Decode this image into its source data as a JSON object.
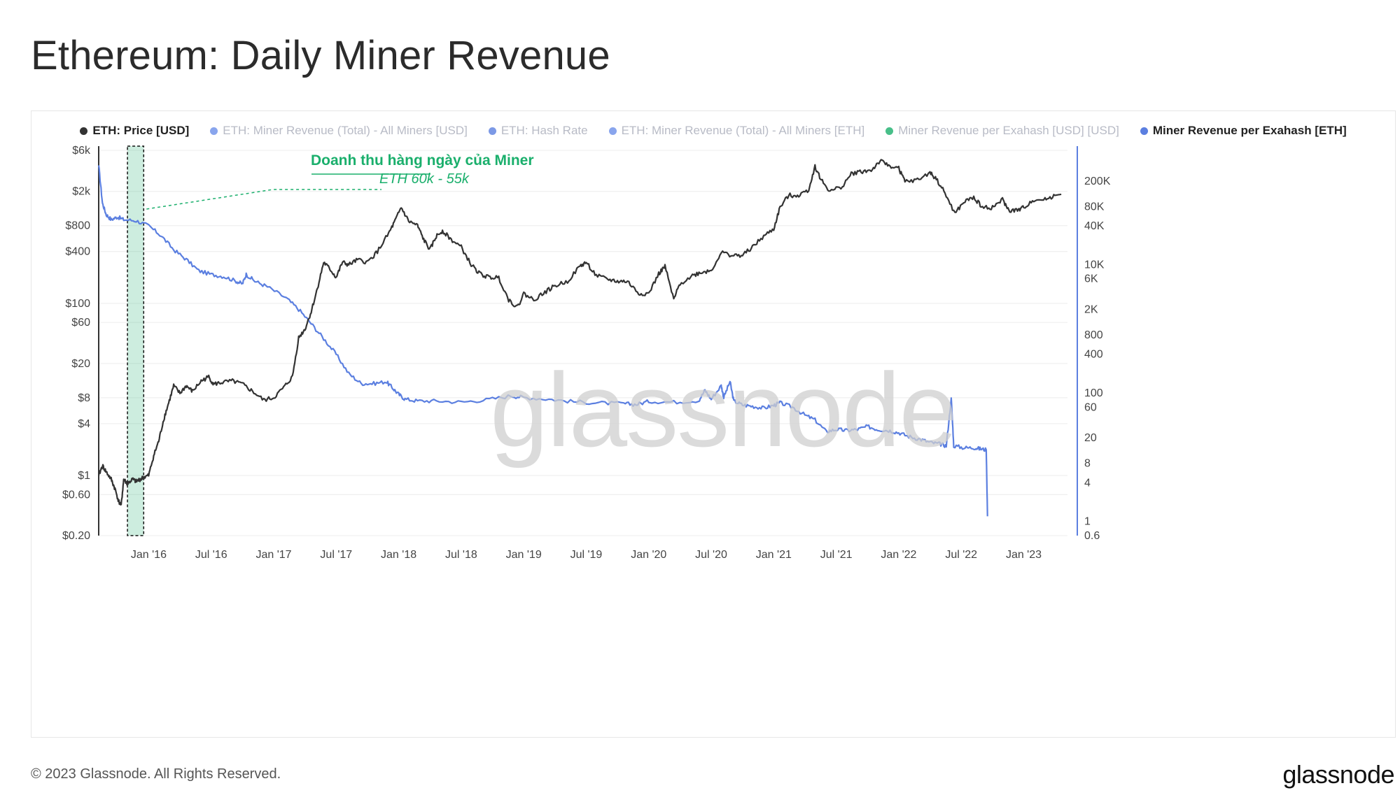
{
  "title": "Ethereum: Daily Miner Revenue",
  "footer": "© 2023 Glassnode. All Rights Reserved.",
  "brand": "glassnode",
  "watermark": "glassnode",
  "annotation": {
    "title": "Doanh thu hàng ngày của Miner",
    "subtitle": "ETH 60k - 55k",
    "color": "#1aaf6c"
  },
  "legend": [
    {
      "label": "ETH: Price [USD]",
      "color": "#333333",
      "state": "active"
    },
    {
      "label": "ETH: Miner Revenue (Total) - All Miners [USD]",
      "color": "#6b8ee8",
      "state": "faded"
    },
    {
      "label": "ETH: Hash Rate",
      "color": "#5b7fe0",
      "state": "faded"
    },
    {
      "label": "ETH: Miner Revenue (Total) - All Miners [ETH]",
      "color": "#6b8ee8",
      "state": "faded"
    },
    {
      "label": "Miner Revenue per Exahash [USD] [USD]",
      "color": "#1aaf6c",
      "state": "faded"
    },
    {
      "label": "Miner Revenue per Exahash [ETH]",
      "color": "#5b7fe0",
      "state": "active"
    }
  ],
  "chart_data": {
    "type": "line",
    "title": "Ethereum: Daily Miner Revenue",
    "x_ticks": [
      "Jan '16",
      "Jul '16",
      "Jan '17",
      "Jul '17",
      "Jan '18",
      "Jul '18",
      "Jan '19",
      "Jul '19",
      "Jan '20",
      "Jul '20",
      "Jan '21",
      "Jul '21",
      "Jan '22",
      "Jul '22",
      "Jan '23"
    ],
    "x_range": [
      2015.6,
      2023.35
    ],
    "y_left": {
      "scale": "log",
      "range": [
        0.2,
        6000
      ],
      "ticks": [
        {
          "v": 6000,
          "label": "$6k"
        },
        {
          "v": 2000,
          "label": "$2k"
        },
        {
          "v": 800,
          "label": "$800"
        },
        {
          "v": 400,
          "label": "$400"
        },
        {
          "v": 100,
          "label": "$100"
        },
        {
          "v": 60,
          "label": "$60"
        },
        {
          "v": 20,
          "label": "$20"
        },
        {
          "v": 8,
          "label": "$8"
        },
        {
          "v": 4,
          "label": "$4"
        },
        {
          "v": 1,
          "label": "$1"
        },
        {
          "v": 0.6,
          "label": "$0.60"
        },
        {
          "v": 0.2,
          "label": "$0.20"
        }
      ]
    },
    "y_right": {
      "scale": "log",
      "range": [
        0.6,
        600000
      ],
      "ticks": [
        {
          "v": 200000,
          "label": "200K"
        },
        {
          "v": 80000,
          "label": "80K"
        },
        {
          "v": 40000,
          "label": "40K"
        },
        {
          "v": 10000,
          "label": "10K"
        },
        {
          "v": 6000,
          "label": "6K"
        },
        {
          "v": 2000,
          "label": "2K"
        },
        {
          "v": 800,
          "label": "800"
        },
        {
          "v": 400,
          "label": "400"
        },
        {
          "v": 100,
          "label": "100"
        },
        {
          "v": 60,
          "label": "60"
        },
        {
          "v": 20,
          "label": "20"
        },
        {
          "v": 8,
          "label": "8"
        },
        {
          "v": 4,
          "label": "4"
        },
        {
          "v": 1,
          "label": "1"
        },
        {
          "v": 0.6,
          "label": "0.6"
        }
      ]
    },
    "highlight": {
      "x_start": 2015.83,
      "x_end": 2015.96,
      "color": "#1aaf6c"
    },
    "series": [
      {
        "name": "ETH: Price [USD]",
        "axis": "left",
        "color": "#333333",
        "points": [
          [
            2015.6,
            1.0
          ],
          [
            2015.63,
            1.3
          ],
          [
            2015.66,
            1.1
          ],
          [
            2015.7,
            0.9
          ],
          [
            2015.73,
            0.7
          ],
          [
            2015.76,
            0.5
          ],
          [
            2015.78,
            0.45
          ],
          [
            2015.8,
            0.9
          ],
          [
            2015.83,
            0.8
          ],
          [
            2015.87,
            0.9
          ],
          [
            2015.9,
            0.85
          ],
          [
            2015.93,
            0.9
          ],
          [
            2015.96,
            0.95
          ],
          [
            2016.0,
            1.0
          ],
          [
            2016.04,
            1.7
          ],
          [
            2016.08,
            2.5
          ],
          [
            2016.12,
            4.5
          ],
          [
            2016.16,
            7.0
          ],
          [
            2016.2,
            11.0
          ],
          [
            2016.25,
            9.0
          ],
          [
            2016.3,
            11.0
          ],
          [
            2016.35,
            9.5
          ],
          [
            2016.42,
            12.5
          ],
          [
            2016.48,
            14.0
          ],
          [
            2016.52,
            11.5
          ],
          [
            2016.58,
            12.0
          ],
          [
            2016.67,
            12.5
          ],
          [
            2016.75,
            11.5
          ],
          [
            2016.83,
            9.5
          ],
          [
            2016.92,
            7.5
          ],
          [
            2017.0,
            8.0
          ],
          [
            2017.08,
            10.5
          ],
          [
            2017.15,
            14.0
          ],
          [
            2017.2,
            40.0
          ],
          [
            2017.25,
            50.0
          ],
          [
            2017.3,
            80.0
          ],
          [
            2017.35,
            150.0
          ],
          [
            2017.4,
            300.0
          ],
          [
            2017.45,
            250.0
          ],
          [
            2017.5,
            200.0
          ],
          [
            2017.55,
            300.0
          ],
          [
            2017.6,
            280.0
          ],
          [
            2017.67,
            320.0
          ],
          [
            2017.75,
            300.0
          ],
          [
            2017.83,
            400.0
          ],
          [
            2017.92,
            650.0
          ],
          [
            2017.97,
            900.0
          ],
          [
            2018.02,
            1300.0
          ],
          [
            2018.08,
            900.0
          ],
          [
            2018.15,
            800.0
          ],
          [
            2018.2,
            550.0
          ],
          [
            2018.25,
            420.0
          ],
          [
            2018.3,
            600.0
          ],
          [
            2018.35,
            700.0
          ],
          [
            2018.42,
            550.0
          ],
          [
            2018.5,
            450.0
          ],
          [
            2018.58,
            280.0
          ],
          [
            2018.65,
            220.0
          ],
          [
            2018.72,
            200.0
          ],
          [
            2018.8,
            200.0
          ],
          [
            2018.88,
            110.0
          ],
          [
            2018.95,
            90.0
          ],
          [
            2019.0,
            130.0
          ],
          [
            2019.08,
            110.0
          ],
          [
            2019.17,
            135.0
          ],
          [
            2019.25,
            160.0
          ],
          [
            2019.35,
            180.0
          ],
          [
            2019.45,
            270.0
          ],
          [
            2019.5,
            300.0
          ],
          [
            2019.58,
            210.0
          ],
          [
            2019.67,
            190.0
          ],
          [
            2019.75,
            180.0
          ],
          [
            2019.83,
            180.0
          ],
          [
            2019.92,
            130.0
          ],
          [
            2020.0,
            130.0
          ],
          [
            2020.08,
            220.0
          ],
          [
            2020.13,
            270.0
          ],
          [
            2020.2,
            110.0
          ],
          [
            2020.25,
            170.0
          ],
          [
            2020.35,
            210.0
          ],
          [
            2020.42,
            230.0
          ],
          [
            2020.5,
            240.0
          ],
          [
            2020.58,
            390.0
          ],
          [
            2020.67,
            360.0
          ],
          [
            2020.75,
            360.0
          ],
          [
            2020.83,
            450.0
          ],
          [
            2020.92,
            600.0
          ],
          [
            2021.0,
            730.0
          ],
          [
            2021.05,
            1300.0
          ],
          [
            2021.12,
            1800.0
          ],
          [
            2021.2,
            1800.0
          ],
          [
            2021.28,
            2100.0
          ],
          [
            2021.33,
            3900.0
          ],
          [
            2021.38,
            2700.0
          ],
          [
            2021.45,
            2000.0
          ],
          [
            2021.55,
            2300.0
          ],
          [
            2021.62,
            3200.0
          ],
          [
            2021.7,
            3400.0
          ],
          [
            2021.78,
            3500.0
          ],
          [
            2021.85,
            4500.0
          ],
          [
            2021.92,
            4000.0
          ],
          [
            2022.0,
            3700.0
          ],
          [
            2022.05,
            2600.0
          ],
          [
            2022.15,
            2700.0
          ],
          [
            2022.25,
            3300.0
          ],
          [
            2022.3,
            2800.0
          ],
          [
            2022.37,
            1900.0
          ],
          [
            2022.45,
            1100.0
          ],
          [
            2022.52,
            1500.0
          ],
          [
            2022.6,
            1700.0
          ],
          [
            2022.67,
            1300.0
          ],
          [
            2022.75,
            1300.0
          ],
          [
            2022.83,
            1600.0
          ],
          [
            2022.88,
            1200.0
          ],
          [
            2022.95,
            1200.0
          ],
          [
            2023.0,
            1300.0
          ],
          [
            2023.08,
            1600.0
          ],
          [
            2023.17,
            1600.0
          ],
          [
            2023.25,
            1800.0
          ],
          [
            2023.3,
            1850.0
          ]
        ]
      },
      {
        "name": "Miner Revenue per Exahash [ETH]",
        "axis": "right",
        "color": "#5b7fe0",
        "points": [
          [
            2015.6,
            350000
          ],
          [
            2015.63,
            90000
          ],
          [
            2015.66,
            60000
          ],
          [
            2015.7,
            50000
          ],
          [
            2015.75,
            55000
          ],
          [
            2015.8,
            50000
          ],
          [
            2015.9,
            48000
          ],
          [
            2016.0,
            40000
          ],
          [
            2016.1,
            28000
          ],
          [
            2016.2,
            17000
          ],
          [
            2016.3,
            12000
          ],
          [
            2016.4,
            8000
          ],
          [
            2016.5,
            7000
          ],
          [
            2016.6,
            6500
          ],
          [
            2016.7,
            5500
          ],
          [
            2016.75,
            5000
          ],
          [
            2016.78,
            7000
          ],
          [
            2016.85,
            5500
          ],
          [
            2016.95,
            4500
          ],
          [
            2017.1,
            3000
          ],
          [
            2017.2,
            2000
          ],
          [
            2017.3,
            1200
          ],
          [
            2017.4,
            700
          ],
          [
            2017.5,
            400
          ],
          [
            2017.6,
            200
          ],
          [
            2017.7,
            140
          ],
          [
            2017.8,
            140
          ],
          [
            2017.9,
            150
          ],
          [
            2017.95,
            120
          ],
          [
            2018.0,
            95
          ],
          [
            2018.05,
            80
          ],
          [
            2018.15,
            75
          ],
          [
            2018.3,
            75
          ],
          [
            2018.5,
            72
          ],
          [
            2018.7,
            78
          ],
          [
            2018.9,
            90
          ],
          [
            2019.0,
            85
          ],
          [
            2019.2,
            80
          ],
          [
            2019.4,
            73
          ],
          [
            2019.6,
            70
          ],
          [
            2019.8,
            68
          ],
          [
            2019.9,
            66
          ],
          [
            2020.0,
            74
          ],
          [
            2020.2,
            72
          ],
          [
            2020.4,
            76
          ],
          [
            2020.45,
            110
          ],
          [
            2020.5,
            80
          ],
          [
            2020.58,
            130
          ],
          [
            2020.6,
            85
          ],
          [
            2020.65,
            150
          ],
          [
            2020.68,
            75
          ],
          [
            2020.75,
            65
          ],
          [
            2020.83,
            62
          ],
          [
            2020.92,
            58
          ],
          [
            2021.0,
            64
          ],
          [
            2021.05,
            70
          ],
          [
            2021.15,
            60
          ],
          [
            2021.25,
            45
          ],
          [
            2021.33,
            38
          ],
          [
            2021.42,
            25
          ],
          [
            2021.5,
            27
          ],
          [
            2021.58,
            26
          ],
          [
            2021.67,
            27
          ],
          [
            2021.75,
            30
          ],
          [
            2021.83,
            27
          ],
          [
            2021.92,
            26
          ],
          [
            2022.0,
            24
          ],
          [
            2022.08,
            21
          ],
          [
            2022.17,
            19
          ],
          [
            2022.25,
            17
          ],
          [
            2022.33,
            16
          ],
          [
            2022.38,
            15
          ],
          [
            2022.42,
            80
          ],
          [
            2022.44,
            15
          ],
          [
            2022.52,
            14
          ],
          [
            2022.6,
            14
          ],
          [
            2022.65,
            13.5
          ],
          [
            2022.7,
            13
          ],
          [
            2022.71,
            1.2
          ]
        ]
      }
    ]
  }
}
